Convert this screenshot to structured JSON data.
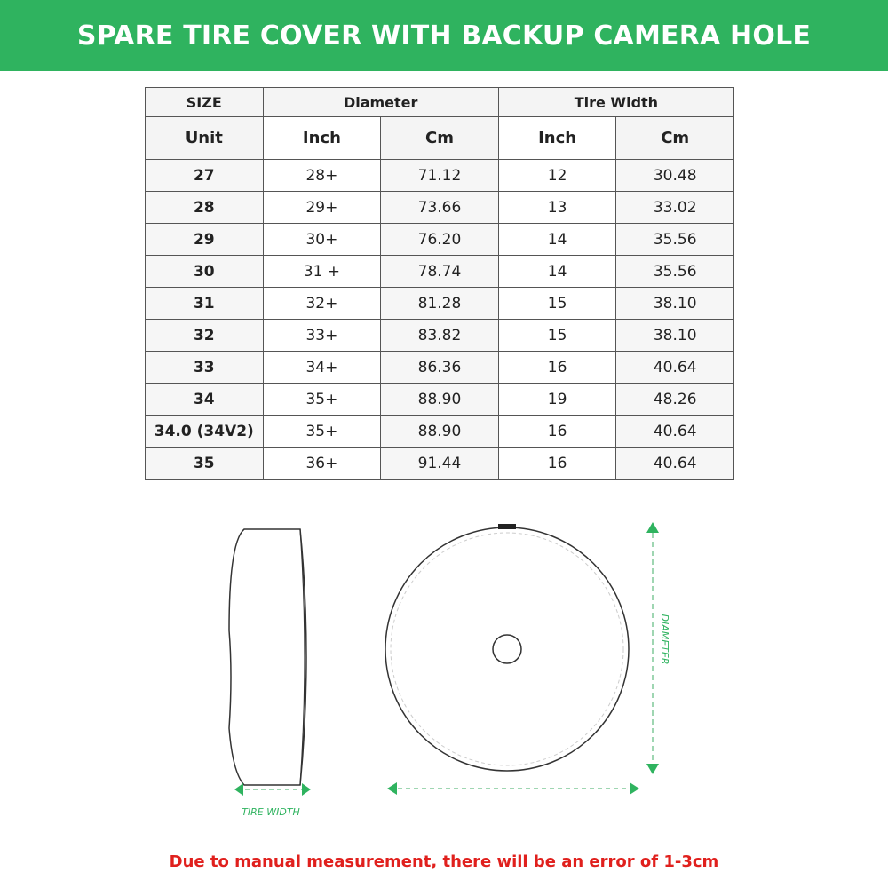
{
  "banner": {
    "title": "SPARE TIRE COVER WITH BACKUP CAMERA HOLE",
    "color": "#2fb35f"
  },
  "table": {
    "group_headers": [
      "SIZE",
      "Diameter",
      "Tire Width"
    ],
    "sub_headers": [
      "Unit",
      "Inch",
      "Cm",
      "Inch",
      "Cm"
    ],
    "rows": [
      [
        "27",
        "28+",
        "71.12",
        "12",
        "30.48"
      ],
      [
        "28",
        "29+",
        "73.66",
        "13",
        "33.02"
      ],
      [
        "29",
        "30+",
        "76.20",
        "14",
        "35.56"
      ],
      [
        "30",
        "31 +",
        "78.74",
        "14",
        "35.56"
      ],
      [
        "31",
        "32+",
        "81.28",
        "15",
        "38.10"
      ],
      [
        "32",
        "33+",
        "83.82",
        "15",
        "38.10"
      ],
      [
        "33",
        "34+",
        "86.36",
        "16",
        "40.64"
      ],
      [
        "34",
        "35+",
        "88.90",
        "19",
        "48.26"
      ],
      [
        "34.0 (34V2)",
        "35+",
        "88.90",
        "16",
        "40.64"
      ],
      [
        "35",
        "36+",
        "91.44",
        "16",
        "40.64"
      ]
    ]
  },
  "diagram": {
    "tire_width_label": "TIRE WIDTH",
    "diameter_label": "DIAMETER",
    "arrow_color": "#2fb35f"
  },
  "note": {
    "text": "Due to manual measurement, there will be an error of 1-3cm",
    "color": "#e0201d"
  }
}
